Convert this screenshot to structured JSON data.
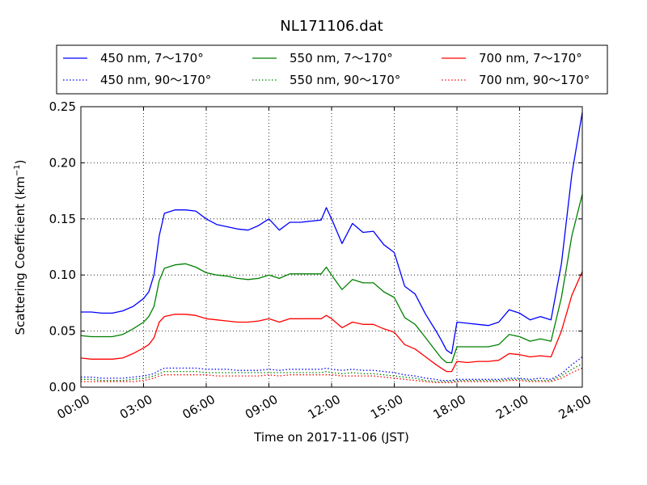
{
  "chart_data": {
    "type": "line",
    "title": "NL171106.dat",
    "xlabel": "Time on 2017-11-06 (JST)",
    "ylabel": "Scattering Coefficient (km",
    "ylabel_sup": "−1",
    "ylabel_end": ")",
    "xlim": [
      0,
      24
    ],
    "ylim": [
      0,
      0.25
    ],
    "x_ticks": [
      0,
      3,
      6,
      9,
      12,
      15,
      18,
      21,
      24
    ],
    "x_tick_labels": [
      "00:00",
      "03:00",
      "06:00",
      "09:00",
      "12:00",
      "15:00",
      "18:00",
      "21:00",
      "24:00"
    ],
    "y_ticks": [
      0,
      0.05,
      0.1,
      0.15,
      0.2,
      0.25
    ],
    "y_tick_labels": [
      "0.00",
      "0.05",
      "0.10",
      "0.15",
      "0.20",
      "0.25"
    ],
    "grid": true,
    "legend_position": "top",
    "x": [
      0,
      0.5,
      1,
      1.5,
      2,
      2.5,
      3,
      3.25,
      3.5,
      3.75,
      4,
      4.5,
      5,
      5.5,
      6,
      6.5,
      7,
      7.5,
      8,
      8.5,
      9,
      9.5,
      10,
      10.5,
      11,
      11.5,
      11.75,
      12,
      12.5,
      13,
      13.5,
      14,
      14.5,
      15,
      15.5,
      16,
      16.5,
      17,
      17.25,
      17.5,
      17.75,
      18,
      18.5,
      19,
      19.5,
      20,
      20.5,
      21,
      21.5,
      22,
      22.5,
      23,
      23.5,
      24
    ],
    "series": [
      {
        "name": "450 nm, 7～170°",
        "color": "#0000ff",
        "style": "solid",
        "values": [
          0.067,
          0.067,
          0.066,
          0.066,
          0.068,
          0.072,
          0.079,
          0.085,
          0.1,
          0.135,
          0.155,
          0.158,
          0.158,
          0.157,
          0.15,
          0.145,
          0.143,
          0.141,
          0.14,
          0.144,
          0.15,
          0.14,
          0.147,
          0.147,
          0.148,
          0.149,
          0.16,
          0.15,
          0.128,
          0.146,
          0.138,
          0.139,
          0.127,
          0.12,
          0.09,
          0.083,
          0.065,
          0.05,
          0.042,
          0.033,
          0.03,
          0.058,
          0.057,
          0.056,
          0.055,
          0.058,
          0.069,
          0.066,
          0.06,
          0.063,
          0.06,
          0.11,
          0.19,
          0.245
        ]
      },
      {
        "name": "550 nm, 7～170°",
        "color": "#008000",
        "style": "solid",
        "values": [
          0.046,
          0.045,
          0.045,
          0.045,
          0.047,
          0.052,
          0.058,
          0.063,
          0.072,
          0.095,
          0.106,
          0.109,
          0.11,
          0.107,
          0.102,
          0.1,
          0.099,
          0.097,
          0.096,
          0.097,
          0.1,
          0.097,
          0.101,
          0.101,
          0.101,
          0.101,
          0.107,
          0.1,
          0.087,
          0.096,
          0.093,
          0.093,
          0.085,
          0.08,
          0.062,
          0.056,
          0.044,
          0.032,
          0.026,
          0.022,
          0.022,
          0.036,
          0.036,
          0.036,
          0.036,
          0.038,
          0.047,
          0.045,
          0.041,
          0.043,
          0.041,
          0.08,
          0.135,
          0.172
        ]
      },
      {
        "name": "700 nm, 7～170°",
        "color": "#ff0000",
        "style": "solid",
        "values": [
          0.026,
          0.025,
          0.025,
          0.025,
          0.026,
          0.03,
          0.035,
          0.038,
          0.044,
          0.058,
          0.063,
          0.065,
          0.065,
          0.064,
          0.061,
          0.06,
          0.059,
          0.058,
          0.058,
          0.059,
          0.061,
          0.058,
          0.061,
          0.061,
          0.061,
          0.061,
          0.064,
          0.061,
          0.053,
          0.058,
          0.056,
          0.056,
          0.052,
          0.049,
          0.038,
          0.034,
          0.027,
          0.02,
          0.017,
          0.014,
          0.014,
          0.023,
          0.022,
          0.023,
          0.023,
          0.024,
          0.03,
          0.029,
          0.027,
          0.028,
          0.027,
          0.05,
          0.082,
          0.103
        ]
      },
      {
        "name": "450 nm, 90～170°",
        "color": "#0000ff",
        "style": "dotted",
        "values": [
          0.009,
          0.009,
          0.008,
          0.008,
          0.008,
          0.009,
          0.01,
          0.011,
          0.012,
          0.015,
          0.017,
          0.017,
          0.017,
          0.017,
          0.016,
          0.016,
          0.016,
          0.015,
          0.015,
          0.015,
          0.016,
          0.015,
          0.016,
          0.016,
          0.016,
          0.016,
          0.017,
          0.016,
          0.015,
          0.016,
          0.015,
          0.015,
          0.014,
          0.013,
          0.011,
          0.01,
          0.008,
          0.007,
          0.006,
          0.006,
          0.006,
          0.007,
          0.007,
          0.007,
          0.007,
          0.007,
          0.008,
          0.008,
          0.007,
          0.008,
          0.007,
          0.012,
          0.02,
          0.027
        ]
      },
      {
        "name": "550 nm, 90～170°",
        "color": "#008000",
        "style": "dotted",
        "values": [
          0.007,
          0.007,
          0.006,
          0.006,
          0.006,
          0.007,
          0.008,
          0.009,
          0.01,
          0.012,
          0.014,
          0.014,
          0.014,
          0.014,
          0.013,
          0.013,
          0.013,
          0.013,
          0.013,
          0.013,
          0.013,
          0.013,
          0.013,
          0.013,
          0.013,
          0.013,
          0.014,
          0.013,
          0.012,
          0.013,
          0.012,
          0.012,
          0.011,
          0.01,
          0.009,
          0.008,
          0.006,
          0.005,
          0.005,
          0.005,
          0.005,
          0.006,
          0.006,
          0.006,
          0.006,
          0.006,
          0.007,
          0.007,
          0.006,
          0.006,
          0.006,
          0.01,
          0.016,
          0.021
        ]
      },
      {
        "name": "700 nm, 90～170°",
        "color": "#ff0000",
        "style": "dotted",
        "values": [
          0.005,
          0.005,
          0.005,
          0.005,
          0.005,
          0.005,
          0.006,
          0.007,
          0.008,
          0.01,
          0.011,
          0.011,
          0.011,
          0.011,
          0.011,
          0.01,
          0.01,
          0.01,
          0.01,
          0.01,
          0.011,
          0.01,
          0.011,
          0.011,
          0.011,
          0.011,
          0.011,
          0.011,
          0.01,
          0.01,
          0.01,
          0.01,
          0.009,
          0.008,
          0.007,
          0.006,
          0.005,
          0.004,
          0.004,
          0.004,
          0.004,
          0.005,
          0.005,
          0.005,
          0.005,
          0.005,
          0.006,
          0.006,
          0.005,
          0.005,
          0.005,
          0.008,
          0.013,
          0.017
        ]
      }
    ]
  }
}
